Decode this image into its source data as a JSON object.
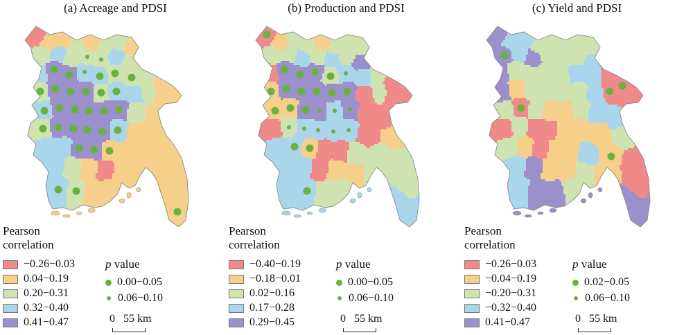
{
  "panels": [
    {
      "title": "(a) Acreage and PDSI",
      "legend_title": [
        "Pearson",
        "correlation"
      ],
      "classes": [
        {
          "label": "−0.26−0.03",
          "color": "#f08a8a"
        },
        {
          "label": "0.04−0.19",
          "color": "#f6cf8a"
        },
        {
          "label": "0.20−0.31",
          "color": "#cfe3b0"
        },
        {
          "label": "0.32−0.40",
          "color": "#a9d6ea"
        },
        {
          "label": "0.41−0.47",
          "color": "#9b8fcc"
        }
      ],
      "pvalue_title": "value",
      "pvalue_italic": "p",
      "pvalues": [
        {
          "label": "0.00−0.05",
          "size": "large"
        },
        {
          "label": "0.06−0.10",
          "size": "small"
        }
      ],
      "scale_zero": "0",
      "scale_label": "55 km"
    },
    {
      "title": "(b) Production and PDSI",
      "legend_title": [
        "Pearson",
        "correlation"
      ],
      "classes": [
        {
          "label": "−0.40−0.19",
          "color": "#f08a8a"
        },
        {
          "label": "−0.18−0.01",
          "color": "#f6cf8a"
        },
        {
          "label": "0.02−0.16",
          "color": "#cfe3b0"
        },
        {
          "label": "0.17−0.28",
          "color": "#a9d6ea"
        },
        {
          "label": "0.29−0.45",
          "color": "#9b8fcc"
        }
      ],
      "pvalue_title": "value",
      "pvalue_italic": "p",
      "pvalues": [
        {
          "label": "0.00−0.05",
          "size": "large"
        },
        {
          "label": "0.06−0.10",
          "size": "small"
        }
      ],
      "scale_zero": "0",
      "scale_label": "55 km"
    },
    {
      "title": "(c) Yield and PDSI",
      "legend_title": [
        "Pearson",
        "correlation"
      ],
      "classes": [
        {
          "label": "−0.26−0.03",
          "color": "#f08a8a"
        },
        {
          "label": "−0.04−0.19",
          "color": "#f6cf8a"
        },
        {
          "label": "−0.20−0.31",
          "color": "#cfe3b0"
        },
        {
          "label": "−0.32−0.40",
          "color": "#a9d6ea"
        },
        {
          "label": "0.41−0.47",
          "color": "#9b8fcc"
        }
      ],
      "pvalue_title": "value",
      "pvalue_italic": "p",
      "pvalues": [
        {
          "label": "0.02−0.05",
          "size": "large"
        },
        {
          "label": "0.06−0.10",
          "size": "small"
        }
      ],
      "scale_zero": "0",
      "scale_label": "55 km"
    }
  ],
  "dot_color": "#6ab23f"
}
